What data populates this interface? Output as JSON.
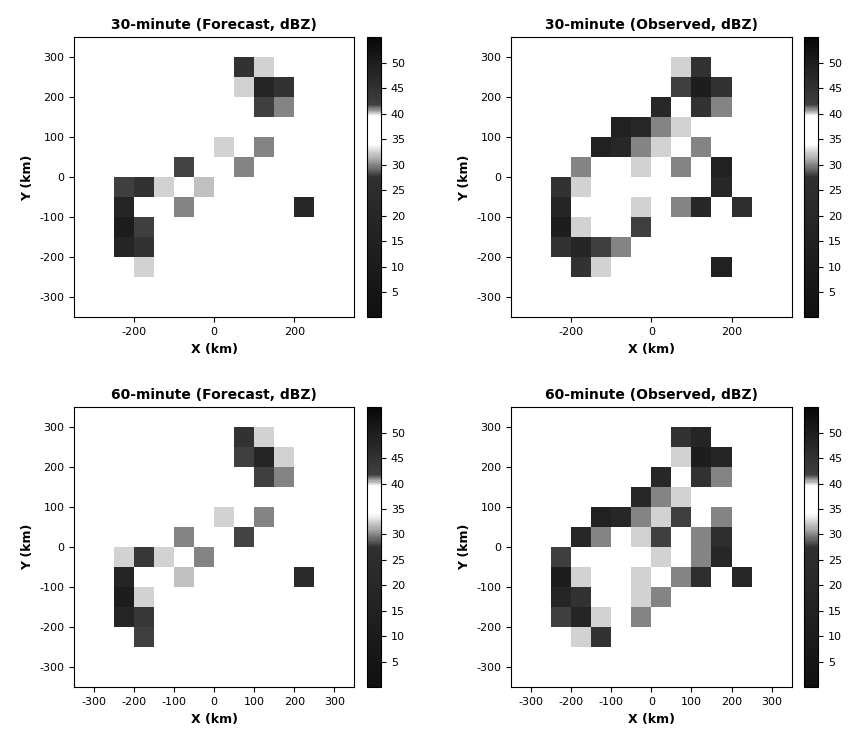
{
  "chart_data": [
    {
      "type": "heatmap",
      "title": "30-minute (Forecast, dBZ)",
      "xlabel": "X (km)",
      "ylabel": "Y (km)",
      "x": [
        -275,
        -225,
        -175,
        -125,
        -75,
        -25,
        25,
        75,
        125,
        175,
        225,
        275
      ],
      "y": [
        -275,
        -225,
        -175,
        -125,
        -75,
        -25,
        25,
        75,
        125,
        175,
        225,
        275
      ],
      "xlim": [
        -350,
        350
      ],
      "ylim": [
        -350,
        350
      ],
      "xticks": [
        -200,
        0,
        200
      ],
      "yticks": [
        -300,
        -200,
        -100,
        0,
        100,
        200,
        300
      ],
      "colorbar_range": [
        0,
        55
      ],
      "colorbar_ticks": [
        5,
        10,
        15,
        20,
        25,
        30,
        35,
        40,
        45,
        50
      ],
      "cells": [
        [
          null,
          null,
          null,
          null,
          null,
          null,
          null,
          null,
          null,
          null,
          null,
          null
        ],
        [
          null,
          null,
          40,
          null,
          null,
          null,
          null,
          null,
          null,
          null,
          null,
          null
        ],
        [
          null,
          48,
          45,
          null,
          null,
          null,
          null,
          null,
          null,
          null,
          null,
          null
        ],
        [
          null,
          50,
          42,
          36,
          null,
          null,
          null,
          null,
          null,
          null,
          null,
          null
        ],
        [
          null,
          48,
          35,
          38,
          30,
          null,
          null,
          null,
          null,
          null,
          20,
          null
        ],
        [
          null,
          42,
          45,
          40,
          36,
          32,
          null,
          null,
          null,
          null,
          null,
          null
        ],
        [
          null,
          null,
          null,
          null,
          28,
          38,
          35,
          30,
          null,
          null,
          null,
          null
        ],
        [
          null,
          null,
          null,
          null,
          null,
          null,
          40,
          36,
          30,
          null,
          null,
          null
        ],
        [
          null,
          null,
          null,
          null,
          null,
          null,
          null,
          38,
          35,
          null,
          null,
          null
        ],
        [
          null,
          null,
          null,
          null,
          null,
          null,
          null,
          35,
          42,
          30,
          null,
          null
        ],
        [
          null,
          null,
          null,
          null,
          null,
          null,
          null,
          40,
          48,
          45,
          null,
          null
        ],
        [
          null,
          null,
          null,
          null,
          null,
          null,
          null,
          45,
          40,
          null,
          null,
          null
        ]
      ]
    },
    {
      "type": "heatmap",
      "title": "30-minute (Observed, dBZ)",
      "xlabel": "X (km)",
      "ylabel": "Y (km)",
      "x": [
        -275,
        -225,
        -175,
        -125,
        -75,
        -25,
        25,
        75,
        125,
        175,
        225,
        275
      ],
      "y": [
        -275,
        -225,
        -175,
        -125,
        -75,
        -25,
        25,
        75,
        125,
        175,
        225,
        275
      ],
      "xlim": [
        -350,
        350
      ],
      "ylim": [
        -350,
        350
      ],
      "xticks": [
        -200,
        0,
        200
      ],
      "yticks": [
        -300,
        -200,
        -100,
        0,
        100,
        200,
        300
      ],
      "colorbar_range": [
        0,
        55
      ],
      "colorbar_ticks": [
        5,
        10,
        15,
        20,
        25,
        30,
        35,
        40,
        45,
        50
      ],
      "cells": [
        [
          null,
          null,
          null,
          null,
          null,
          null,
          null,
          null,
          null,
          null,
          null,
          null
        ],
        [
          null,
          null,
          45,
          40,
          null,
          null,
          null,
          null,
          null,
          15,
          null,
          null
        ],
        [
          null,
          45,
          48,
          42,
          30,
          null,
          null,
          null,
          null,
          null,
          null,
          null
        ],
        [
          null,
          50,
          40,
          36,
          38,
          42,
          null,
          null,
          null,
          null,
          null,
          null
        ],
        [
          null,
          48,
          35,
          36,
          38,
          40,
          35,
          30,
          20,
          null,
          25,
          null
        ],
        [
          null,
          45,
          40,
          36,
          35,
          38,
          36,
          null,
          null,
          20,
          null,
          null
        ],
        [
          null,
          null,
          30,
          35,
          38,
          40,
          36,
          30,
          null,
          15,
          null,
          null
        ],
        [
          null,
          null,
          null,
          15,
          20,
          30,
          40,
          38,
          30,
          null,
          null,
          null
        ],
        [
          null,
          null,
          null,
          null,
          15,
          20,
          30,
          40,
          36,
          null,
          null,
          null
        ],
        [
          null,
          null,
          null,
          null,
          null,
          null,
          20,
          38,
          45,
          30,
          null,
          null
        ],
        [
          null,
          null,
          null,
          null,
          null,
          null,
          null,
          42,
          50,
          45,
          null,
          null
        ],
        [
          null,
          null,
          null,
          null,
          null,
          null,
          null,
          40,
          45,
          null,
          null,
          null
        ]
      ]
    },
    {
      "type": "heatmap",
      "title": "60-minute (Forecast, dBZ)",
      "xlabel": "X (km)",
      "ylabel": "Y (km)",
      "x": [
        -275,
        -225,
        -175,
        -125,
        -75,
        -25,
        25,
        75,
        125,
        175,
        225,
        275
      ],
      "y": [
        -275,
        -225,
        -175,
        -125,
        -75,
        -25,
        25,
        75,
        125,
        175,
        225,
        275
      ],
      "xlim": [
        -350,
        350
      ],
      "ylim": [
        -350,
        350
      ],
      "xticks": [
        -300,
        -200,
        -100,
        0,
        100,
        200,
        300
      ],
      "yticks": [
        -300,
        -200,
        -100,
        0,
        100,
        200,
        300
      ],
      "colorbar_range": [
        0,
        55
      ],
      "colorbar_ticks": [
        5,
        10,
        15,
        20,
        25,
        30,
        35,
        40,
        45,
        50
      ],
      "cells": [
        [
          null,
          null,
          null,
          null,
          null,
          null,
          null,
          null,
          null,
          null,
          null,
          null
        ],
        [
          null,
          null,
          42,
          null,
          null,
          null,
          null,
          null,
          null,
          null,
          null,
          null
        ],
        [
          null,
          48,
          44,
          35,
          null,
          null,
          null,
          null,
          null,
          null,
          null,
          null
        ],
        [
          null,
          50,
          40,
          36,
          null,
          null,
          null,
          null,
          null,
          null,
          null,
          null
        ],
        [
          null,
          48,
          36,
          38,
          32,
          null,
          null,
          null,
          null,
          null,
          22,
          null
        ],
        [
          null,
          40,
          44,
          40,
          36,
          30,
          null,
          null,
          null,
          null,
          null,
          null
        ],
        [
          null,
          null,
          null,
          null,
          30,
          38,
          35,
          28,
          null,
          null,
          null,
          null
        ],
        [
          null,
          null,
          null,
          null,
          null,
          null,
          40,
          36,
          30,
          null,
          null,
          null
        ],
        [
          null,
          null,
          null,
          null,
          null,
          null,
          null,
          38,
          36,
          null,
          null,
          null
        ],
        [
          null,
          null,
          null,
          null,
          null,
          null,
          null,
          36,
          42,
          30,
          null,
          null
        ],
        [
          null,
          null,
          null,
          null,
          null,
          null,
          null,
          42,
          48,
          40,
          null,
          null
        ],
        [
          null,
          null,
          null,
          null,
          null,
          null,
          null,
          45,
          40,
          null,
          null,
          null
        ]
      ]
    },
    {
      "type": "heatmap",
      "title": "60-minute (Observed, dBZ)",
      "xlabel": "X (km)",
      "ylabel": "Y (km)",
      "x": [
        -275,
        -225,
        -175,
        -125,
        -75,
        -25,
        25,
        75,
        125,
        175,
        225,
        275
      ],
      "y": [
        -275,
        -225,
        -175,
        -125,
        -75,
        -25,
        25,
        75,
        125,
        175,
        225,
        275
      ],
      "xlim": [
        -350,
        350
      ],
      "ylim": [
        -350,
        350
      ],
      "xticks": [
        -300,
        -200,
        -100,
        0,
        100,
        200,
        300
      ],
      "yticks": [
        -300,
        -200,
        -100,
        0,
        100,
        200,
        300
      ],
      "colorbar_range": [
        0,
        55
      ],
      "colorbar_ticks": [
        5,
        10,
        15,
        20,
        25,
        30,
        35,
        40,
        45,
        50
      ],
      "cells": [
        [
          null,
          null,
          null,
          null,
          null,
          null,
          null,
          null,
          null,
          null,
          null,
          null
        ],
        [
          null,
          null,
          40,
          45,
          38,
          null,
          null,
          null,
          null,
          null,
          null,
          null
        ],
        [
          null,
          42,
          48,
          40,
          36,
          30,
          null,
          null,
          null,
          null,
          null,
          null
        ],
        [
          null,
          48,
          45,
          38,
          36,
          40,
          30,
          null,
          null,
          null,
          null,
          null
        ],
        [
          null,
          50,
          40,
          36,
          38,
          40,
          36,
          30,
          25,
          null,
          20,
          null
        ],
        [
          null,
          42,
          38,
          35,
          36,
          38,
          40,
          35,
          30,
          20,
          null,
          null
        ],
        [
          null,
          null,
          20,
          30,
          36,
          40,
          42,
          38,
          30,
          25,
          null,
          null
        ],
        [
          null,
          null,
          null,
          15,
          20,
          30,
          40,
          42,
          36,
          30,
          null,
          null
        ],
        [
          null,
          null,
          null,
          null,
          null,
          20,
          30,
          40,
          38,
          null,
          null,
          null
        ],
        [
          null,
          null,
          null,
          null,
          null,
          null,
          20,
          35,
          45,
          30,
          null,
          null
        ],
        [
          null,
          null,
          null,
          null,
          null,
          null,
          null,
          40,
          50,
          48,
          null,
          null
        ],
        [
          null,
          null,
          null,
          null,
          null,
          null,
          null,
          45,
          48,
          null,
          null,
          null
        ]
      ]
    }
  ]
}
